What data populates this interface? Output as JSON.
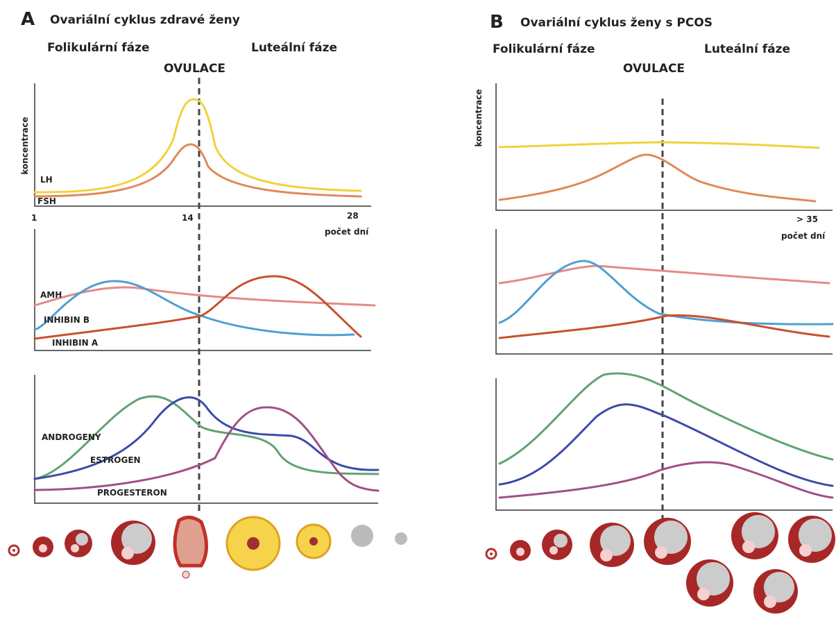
{
  "panels": [
    {
      "letter": "A",
      "title": "Ovariální cyklus zdravé ženy",
      "follicular_phase": "Folikulární fáze",
      "luteal_phase": "Luteální fáze",
      "ovulation": "OVULACE",
      "y_label": "koncentrace",
      "x_ticks": [
        "1",
        "14",
        "28"
      ],
      "x_label": "počet dní",
      "curve_labels": [
        "LH",
        "FSH",
        "AMH",
        "INHIBIN B",
        "INHIBIN A",
        "ANDROGENY",
        "ESTROGEN",
        "PROGESTERON"
      ]
    },
    {
      "letter": "B",
      "title": "Ovariální cyklus ženy s PCOS",
      "follicular_phase": "Folikulární fáze",
      "luteal_phase": "Luteální fáze",
      "ovulation": "OVULACE",
      "y_label": "koncentrace",
      "x_ticks": [
        "> 35"
      ],
      "x_label": "počet dní"
    }
  ]
}
